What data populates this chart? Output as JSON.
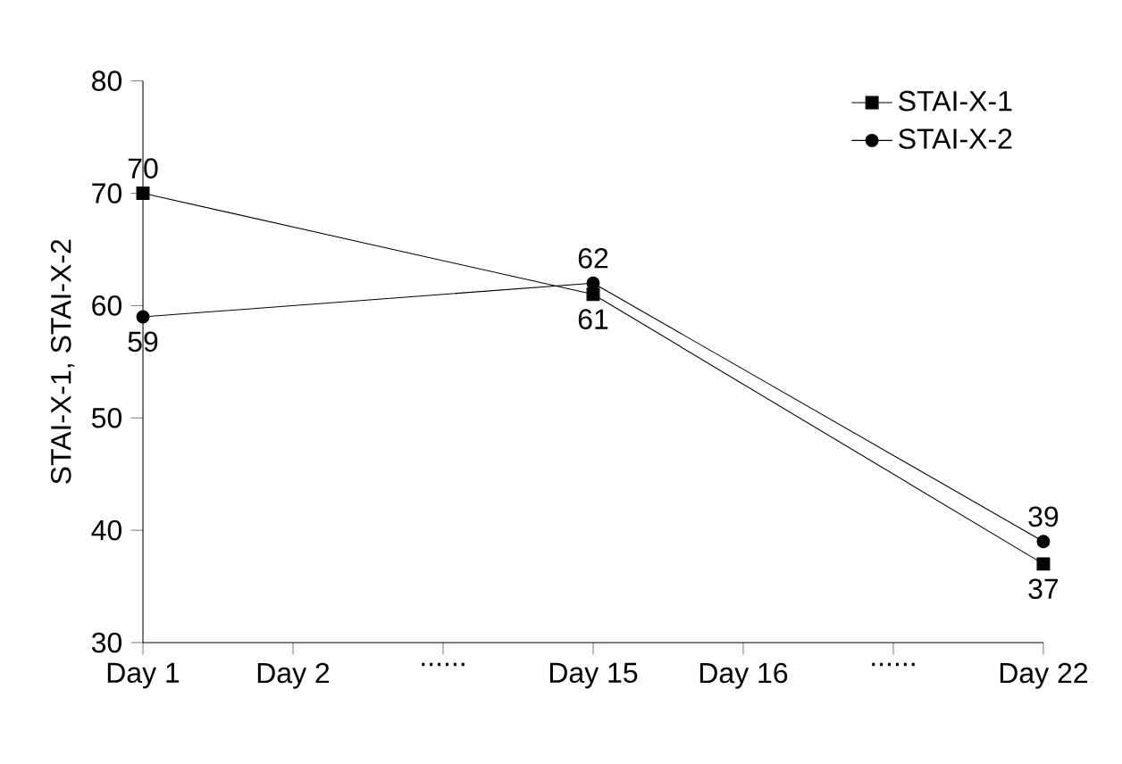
{
  "chart_data": {
    "type": "line",
    "ylabel": "STAI-X-1, STAI-X-2",
    "categories": [
      "Day 1",
      "Day 2",
      "......",
      "Day 15",
      "Day 16",
      "......",
      "Day 22"
    ],
    "series": [
      {
        "name": "STAI-X-1",
        "color": "#000000",
        "marker": "square",
        "values": [
          70,
          null,
          null,
          61,
          null,
          null,
          37
        ]
      },
      {
        "name": "STAI-X-2",
        "color": "#000000",
        "marker": "circle",
        "values": [
          59,
          null,
          null,
          62,
          null,
          null,
          39
        ]
      }
    ],
    "ylim": [
      30,
      80
    ],
    "yticks": [
      30,
      40,
      50,
      60,
      70,
      80
    ],
    "grid": false,
    "legend": "top right",
    "data_labels": true,
    "line_style": "solid"
  }
}
